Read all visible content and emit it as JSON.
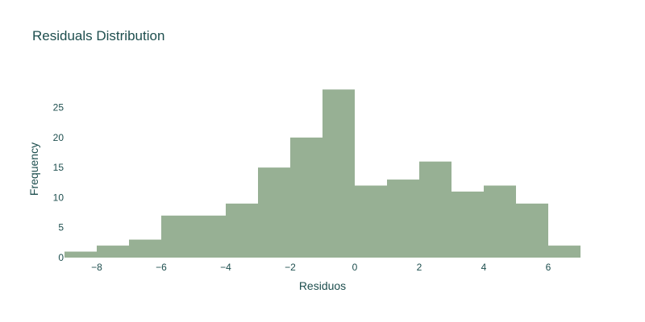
{
  "chart_data": {
    "type": "bar",
    "title": "Residuals Distribution",
    "xlabel": "Residuos",
    "ylabel": "Frequency",
    "xlim": [
      -9,
      7
    ],
    "ylim": [
      0,
      29.5
    ],
    "xticks": [
      -8,
      -6,
      -4,
      -2,
      0,
      2,
      4,
      6
    ],
    "xtick_labels": [
      "−8",
      "−6",
      "−4",
      "−2",
      "0",
      "2",
      "4",
      "6"
    ],
    "yticks": [
      0,
      5,
      10,
      15,
      20,
      25
    ],
    "bin_width": 1,
    "bins": [
      {
        "x0": -9,
        "x1": -8,
        "count": 1
      },
      {
        "x0": -8,
        "x1": -7,
        "count": 2
      },
      {
        "x0": -7,
        "x1": -6,
        "count": 3
      },
      {
        "x0": -6,
        "x1": -5,
        "count": 7
      },
      {
        "x0": -5,
        "x1": -4,
        "count": 7
      },
      {
        "x0": -4,
        "x1": -3,
        "count": 9
      },
      {
        "x0": -3,
        "x1": -2,
        "count": 15
      },
      {
        "x0": -2,
        "x1": -1,
        "count": 20
      },
      {
        "x0": -1,
        "x1": 0,
        "count": 28
      },
      {
        "x0": 0,
        "x1": 1,
        "count": 12
      },
      {
        "x0": 1,
        "x1": 2,
        "count": 13
      },
      {
        "x0": 2,
        "x1": 3,
        "count": 16
      },
      {
        "x0": 3,
        "x1": 4,
        "count": 11
      },
      {
        "x0": 4,
        "x1": 5,
        "count": 12
      },
      {
        "x0": 5,
        "x1": 6,
        "count": 9
      },
      {
        "x0": 6,
        "x1": 7,
        "count": 2
      }
    ],
    "bar_color": "#97b094",
    "text_color": "#1d4e4e",
    "grid": false,
    "legend": false
  }
}
